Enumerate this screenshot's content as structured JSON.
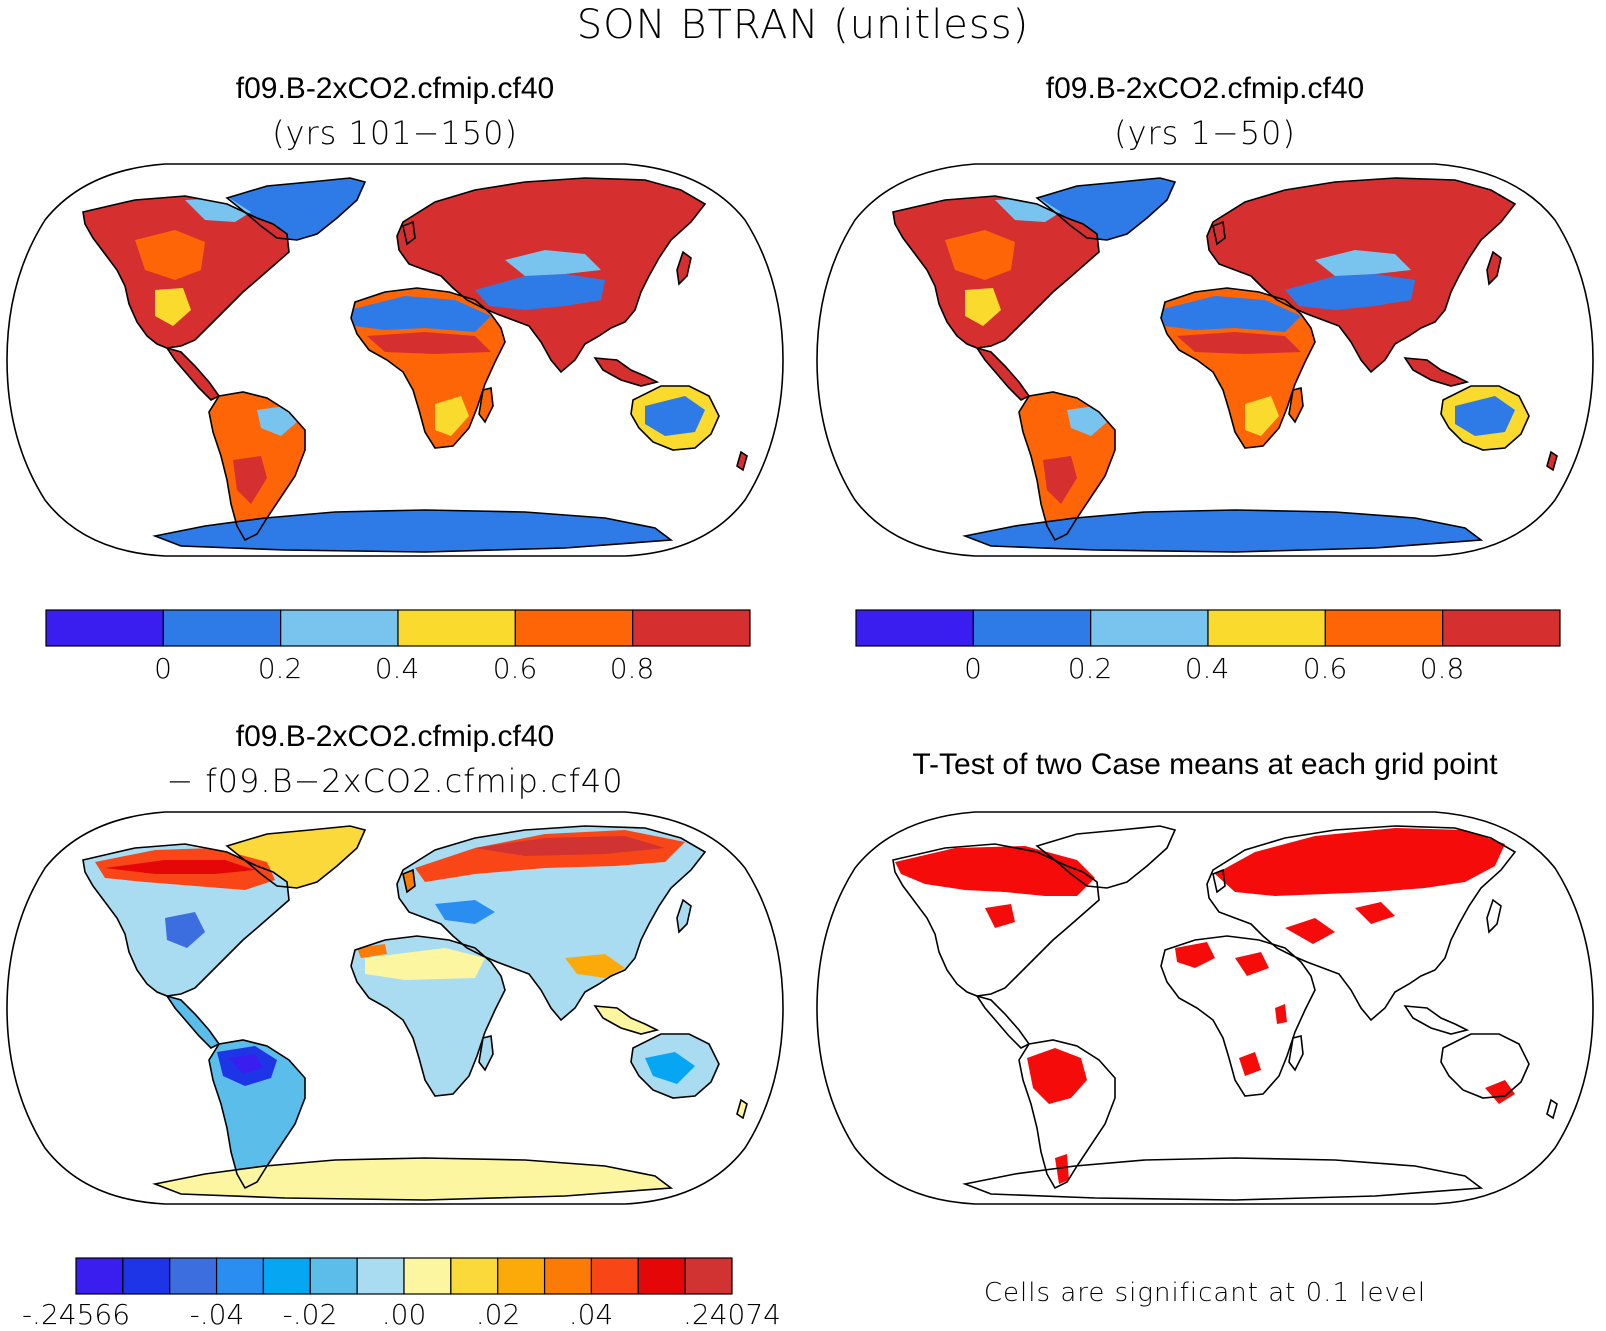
{
  "figure": {
    "title": "SON BTRAN (unitless)"
  },
  "panels": [
    {
      "id": "case-late",
      "title": "f09.B-2xCO2.cfmip.cf40",
      "subtitle": "(yrs 101−150)",
      "palette": "abs"
    },
    {
      "id": "case-early",
      "title": "f09.B-2xCO2.cfmip.cf40",
      "subtitle": "(yrs 1−50)",
      "palette": "abs"
    },
    {
      "id": "difference",
      "title": "f09.B-2xCO2.cfmip.cf40",
      "subtitle": "− f09.B−2xCO2.cfmip.cf40",
      "palette": "diff"
    },
    {
      "id": "ttest",
      "title": "T-Test of two Case means at each grid point",
      "subtitle": "",
      "palette": "sig"
    }
  ],
  "colorbars": {
    "abs": {
      "colors": [
        "#3a1ef0",
        "#2e7be8",
        "#78c4ef",
        "#fadb2d",
        "#fd6506",
        "#d62f2f"
      ],
      "labels": [
        "0",
        "0.2",
        "0.4",
        "0.6",
        "0.8"
      ]
    },
    "diff": {
      "colors": [
        "#3a1ef0",
        "#1d35e6",
        "#3d6ee0",
        "#2a8ef0",
        "#06a6f2",
        "#5abdea",
        "#a9dcf1",
        "#fdf6a0",
        "#fbd93a",
        "#fcaa0a",
        "#fb7b07",
        "#f94616",
        "#e50707",
        "#d13232"
      ],
      "labels": [
        "-.24566",
        "-.04",
        "-.02",
        ".00",
        ".02",
        ".04",
        ".24074"
      ]
    }
  },
  "ttest_note": "Cells are significant at 0.1 level"
}
